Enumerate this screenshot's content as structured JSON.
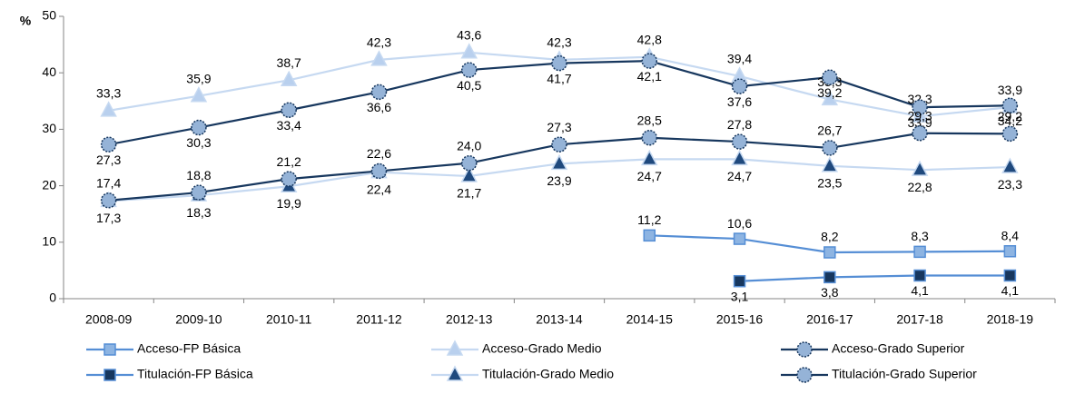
{
  "chart_data": {
    "type": "line",
    "ylabel": "%",
    "categories": [
      "2008-09",
      "2009-10",
      "2010-11",
      "2011-12",
      "2012-13",
      "2013-14",
      "2014-15",
      "2015-16",
      "2016-17",
      "2017-18",
      "2018-19"
    ],
    "ylim": [
      0,
      50
    ],
    "yticks": [
      0,
      10,
      20,
      30,
      40,
      50
    ],
    "grid": false,
    "legend": "bottom",
    "series": [
      {
        "name": "Acceso-FP Básica",
        "color": "#558ed5",
        "marker": "square",
        "marker_color": "#8db4e2",
        "values": [
          null,
          null,
          null,
          null,
          null,
          null,
          11.2,
          10.6,
          8.2,
          8.3,
          8.4
        ],
        "value_labels": [
          null,
          null,
          null,
          null,
          null,
          null,
          "11,2",
          "10,6",
          "8,2",
          "8,3",
          "8,4"
        ]
      },
      {
        "name": "Acceso-Grado Medio",
        "color": "#c6d9f1",
        "marker": "triangle",
        "marker_color": "#b9d0ee",
        "values": [
          33.3,
          35.9,
          38.7,
          42.3,
          43.6,
          42.3,
          42.8,
          39.4,
          35.3,
          32.3,
          33.9
        ],
        "value_labels": [
          "33,3",
          "35,9",
          "38,7",
          "42,3",
          "43,6",
          "42,3",
          "42,8",
          "39,4",
          "35,3",
          "32,3",
          "33,9"
        ]
      },
      {
        "name": "Acceso-Grado Superior",
        "color": "#17375e",
        "marker": "circle",
        "marker_color": "#95b3d7",
        "values": [
          27.3,
          30.3,
          33.4,
          36.6,
          40.5,
          41.7,
          42.1,
          37.6,
          39.2,
          33.9,
          34.2
        ],
        "value_labels": [
          "27,3",
          "30,3",
          "33,4",
          "36,6",
          "40,5",
          "41,7",
          "42,1",
          "37,6",
          "39,2",
          "33,9",
          "34,2"
        ]
      },
      {
        "name": "Titulación-FP Básica",
        "color": "#558ed5",
        "marker": "square",
        "marker_color": "#17375e",
        "values": [
          null,
          null,
          null,
          null,
          null,
          null,
          null,
          3.1,
          3.8,
          4.1,
          4.1
        ],
        "value_labels": [
          null,
          null,
          null,
          null,
          null,
          null,
          null,
          "3,1",
          "3,8",
          "4,1",
          "4,1"
        ]
      },
      {
        "name": "Titulación-Grado Medio",
        "color": "#c6d9f1",
        "marker": "triangle",
        "marker_color": "#1f497d",
        "values": [
          17.3,
          18.3,
          19.9,
          22.4,
          21.7,
          23.9,
          24.7,
          24.7,
          23.5,
          22.8,
          23.3
        ],
        "value_labels": [
          "17,3",
          "18,3",
          "19,9",
          "22,4",
          "21,7",
          "23,9",
          "24,7",
          "24,7",
          "23,5",
          "22,8",
          "23,3"
        ]
      },
      {
        "name": "Titulación-Grado Superior",
        "color": "#17375e",
        "marker": "circle",
        "marker_color": "#95b3d7",
        "values": [
          17.4,
          18.8,
          21.2,
          22.6,
          24.0,
          27.3,
          28.5,
          27.8,
          26.7,
          29.3,
          29.2
        ],
        "value_labels": [
          "17,4",
          "18,8",
          "21,2",
          "22,6",
          "24,0",
          "27,3",
          "28,5",
          "27,8",
          "26,7",
          "29,3",
          "29,2"
        ]
      }
    ]
  }
}
